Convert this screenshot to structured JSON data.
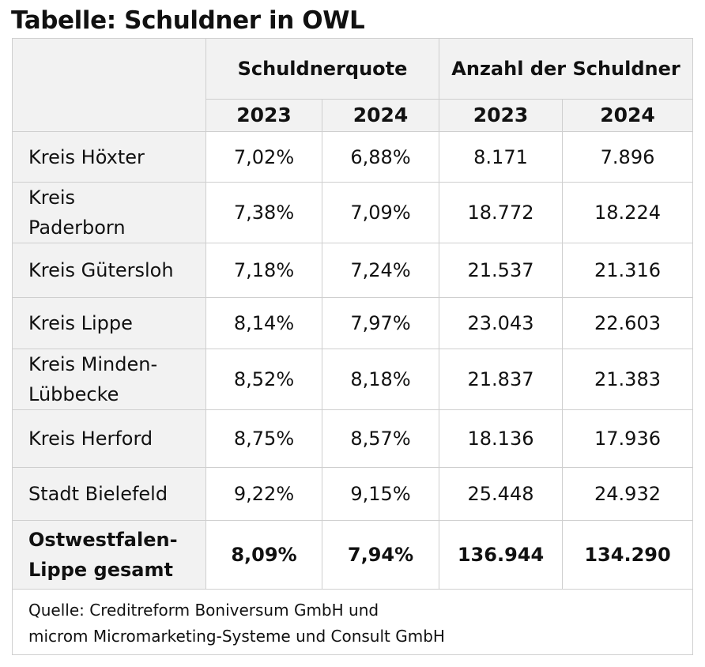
{
  "title": "Tabelle: Schuldner in OWL",
  "header": {
    "group1": "Schuldnerquote",
    "group2": "Anzahl der Schuldner",
    "years": [
      "2023",
      "2024",
      "2023",
      "2024"
    ]
  },
  "rows": [
    {
      "label": "Kreis Höxter",
      "quote_2023": "7,02%",
      "quote_2024": "6,88%",
      "count_2023": "8.171",
      "count_2024": "7.896"
    },
    {
      "label": "Kreis Paderborn",
      "quote_2023": "7,38%",
      "quote_2024": "7,09%",
      "count_2023": "18.772",
      "count_2024": "18.224"
    },
    {
      "label": "Kreis Gütersloh",
      "quote_2023": "7,18%",
      "quote_2024": "7,24%",
      "count_2023": "21.537",
      "count_2024": "21.316"
    },
    {
      "label": "Kreis Lippe",
      "quote_2023": "8,14%",
      "quote_2024": "7,97%",
      "count_2023": "23.043",
      "count_2024": "22.603"
    },
    {
      "label": "Kreis Minden-Lübbecke",
      "quote_2023": "8,52%",
      "quote_2024": "8,18%",
      "count_2023": "21.837",
      "count_2024": "21.383"
    },
    {
      "label": "Kreis Herford",
      "quote_2023": "8,75%",
      "quote_2024": "8,57%",
      "count_2023": "18.136",
      "count_2024": "17.936"
    },
    {
      "label": "Stadt Bielefeld",
      "quote_2023": "9,22%",
      "quote_2024": "9,15%",
      "count_2023": "25.448",
      "count_2024": "24.932"
    }
  ],
  "total": {
    "label": "Ostwestfalen-Lippe gesamt",
    "quote_2023": "8,09%",
    "quote_2024": "7,94%",
    "count_2023": "136.944",
    "count_2024": "134.290"
  },
  "source": {
    "line1": "Quelle: Creditreform Boniversum GmbH und",
    "line2": "microm Micromarketing-Systeme und Consult GmbH"
  }
}
